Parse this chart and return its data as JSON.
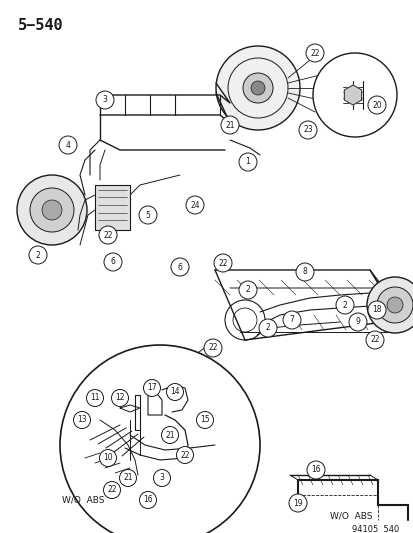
{
  "title": "5−540",
  "bg_color": "#ffffff",
  "line_color": "#1a1a1a",
  "page_number": "94105  540",
  "fig_width": 4.14,
  "fig_height": 5.33,
  "dpi": 100
}
